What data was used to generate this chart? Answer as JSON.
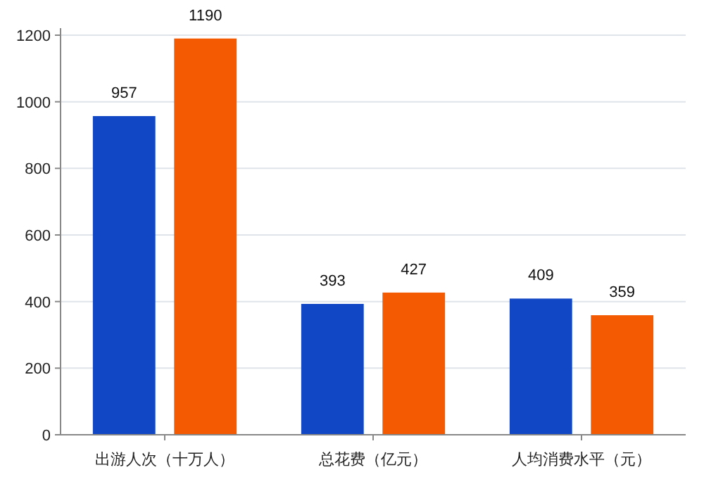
{
  "chart_data": {
    "type": "bar",
    "categories": [
      "出游人次（十万人）",
      "总花费（亿元）",
      "人均消费水平（元）"
    ],
    "series": [
      {
        "color": "#1147c4",
        "values": [
          957,
          393,
          409
        ]
      },
      {
        "color": "#f45a02",
        "values": [
          1190,
          427,
          359
        ]
      }
    ],
    "ylim": [
      0,
      1200
    ],
    "yticks": [
      0,
      200,
      400,
      600,
      800,
      1000,
      1200
    ],
    "grid": "y",
    "data_labels": true
  }
}
